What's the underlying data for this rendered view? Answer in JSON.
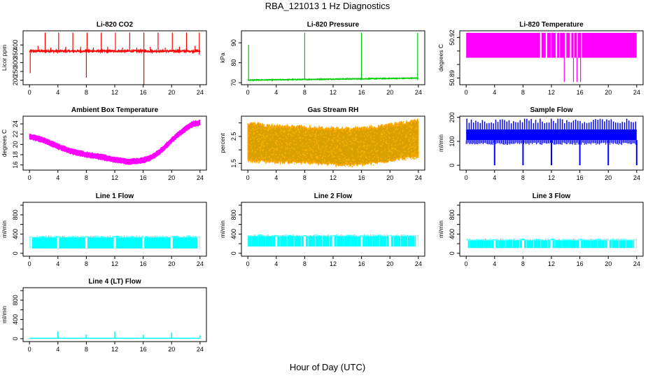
{
  "figure": {
    "title": "RBA_121013  1 Hz Diagnostics",
    "xlabel": "Hour of Day (UTC)"
  },
  "chart_data": [
    {
      "id": "co2",
      "type": "line",
      "title": "Li-820 CO2",
      "ylabel": "Licor ppm",
      "color": "#ff0000",
      "xlim": [
        0,
        24
      ],
      "xticks": [
        0,
        4,
        8,
        12,
        16,
        20,
        24
      ],
      "ylim": [
        175,
        480
      ],
      "yticks": [
        200,
        250,
        300,
        350,
        400
      ],
      "style": "spiky",
      "series": {
        "baseline": 365,
        "band": 10,
        "spikes_up": [
          [
            0.3,
            375
          ],
          [
            1.2,
            395
          ],
          [
            2.2,
            470
          ],
          [
            3.0,
            385
          ],
          [
            4.1,
            470
          ],
          [
            5.1,
            390
          ],
          [
            6.1,
            470
          ],
          [
            7.2,
            390
          ],
          [
            8.1,
            470
          ],
          [
            9.0,
            385
          ],
          [
            10.1,
            470
          ],
          [
            11.0,
            390
          ],
          [
            12.1,
            470
          ],
          [
            13.1,
            385
          ],
          [
            14.1,
            470
          ],
          [
            15.1,
            385
          ],
          [
            16.1,
            470
          ],
          [
            17.0,
            390
          ],
          [
            18.1,
            470
          ],
          [
            19.1,
            385
          ],
          [
            20.1,
            470
          ],
          [
            21.1,
            390
          ],
          [
            22.1,
            470
          ],
          [
            23.3,
            395
          ],
          [
            23.9,
            470
          ]
        ],
        "spikes_down": [
          [
            0.1,
            240
          ],
          [
            8.0,
            215
          ],
          [
            16.1,
            175
          ],
          [
            23.9,
            345
          ]
        ]
      }
    },
    {
      "id": "pressure",
      "type": "line",
      "title": "Li-820 Pressure",
      "ylabel": "kPa",
      "color": "#00cc00",
      "xlim": [
        0,
        24
      ],
      "xticks": [
        0,
        4,
        8,
        12,
        16,
        20,
        24
      ],
      "ylim": [
        69,
        96
      ],
      "yticks": [
        70,
        80,
        90
      ],
      "style": "spiky",
      "series": {
        "baseline": 71.3,
        "end": 72.3,
        "band": 0.4,
        "spikes_up": [
          [
            0.1,
            89
          ],
          [
            8.0,
            95
          ],
          [
            16.0,
            95
          ],
          [
            23.9,
            95
          ]
        ],
        "spikes_down": []
      }
    },
    {
      "id": "licor_temp",
      "type": "band",
      "title": "Li-820 Temperature",
      "ylabel": "degrees C",
      "color": "#ff00ff",
      "xlim": [
        0,
        24
      ],
      "xticks": [
        0,
        4,
        8,
        12,
        16,
        20,
        24
      ],
      "ylim": [
        50.885,
        50.925
      ],
      "yticks": [
        50.89,
        50.92
      ],
      "yticks_minor": [
        50.9,
        50.91
      ],
      "series": {
        "band_low": 50.905,
        "band_high": 50.9235,
        "gaps": [
          [
            10.4,
            10.6
          ],
          [
            11.2,
            11.4
          ],
          [
            11.9,
            12.0
          ],
          [
            12.6,
            12.8
          ],
          [
            13.1,
            13.2
          ],
          [
            13.9,
            14.1
          ],
          [
            14.6,
            14.8
          ],
          [
            15.1,
            15.2
          ],
          [
            15.6,
            15.7
          ],
          [
            16.2,
            16.3
          ]
        ],
        "dips": [
          [
            13.8,
            50.887
          ],
          [
            15.1,
            50.887
          ],
          [
            15.6,
            50.887
          ],
          [
            16.1,
            50.887
          ]
        ]
      }
    },
    {
      "id": "ambient_temp",
      "type": "band",
      "title": "Ambient Box Temperature",
      "ylabel": "degrees C",
      "color": "#ff00ff",
      "xlim": [
        0,
        24
      ],
      "xticks": [
        0,
        4,
        8,
        12,
        16,
        20,
        24
      ],
      "ylim": [
        15,
        25.5
      ],
      "yticks": [
        16,
        18,
        20,
        22,
        24
      ],
      "series": {
        "hours": [
          0,
          2,
          4,
          6,
          8,
          10,
          12,
          14,
          16,
          17,
          18,
          19,
          20,
          21,
          22,
          23,
          24
        ],
        "values": [
          21.6,
          20.8,
          19.6,
          18.6,
          18.0,
          17.6,
          17.0,
          16.6,
          16.9,
          17.4,
          18.2,
          19.4,
          20.8,
          22.0,
          23.1,
          24.0,
          24.2
        ],
        "halfwidth": 0.6
      }
    },
    {
      "id": "gas_rh",
      "type": "band",
      "title": "Gas Stream RH",
      "ylabel": "percent",
      "color": "#ffa500",
      "xlim": [
        0,
        24
      ],
      "xticks": [
        0,
        4,
        8,
        12,
        16,
        20,
        24
      ],
      "ylim": [
        1.25,
        3.25
      ],
      "yticks": [
        1.5,
        2.0,
        2.5,
        3.0
      ],
      "ytick_labels": [
        "1.5",
        "",
        "2.5",
        ""
      ],
      "series": {
        "hours": [
          0,
          4,
          8,
          12,
          16,
          19,
          21,
          24
        ],
        "upper": [
          3.05,
          2.95,
          2.9,
          2.85,
          2.85,
          2.95,
          3.05,
          3.15
        ],
        "lower": [
          1.55,
          1.5,
          1.48,
          1.4,
          1.4,
          1.5,
          1.6,
          1.7
        ],
        "center": [
          2.3,
          2.2,
          2.15,
          2.1,
          2.1,
          2.2,
          2.3,
          2.4
        ]
      }
    },
    {
      "id": "sample_flow",
      "type": "line",
      "title": "Sample Flow",
      "ylabel": "ml/min",
      "color": "#0000ff",
      "xlim": [
        0,
        24
      ],
      "xticks": [
        0,
        4,
        8,
        12,
        16,
        20,
        24
      ],
      "ylim": [
        -20,
        205
      ],
      "yticks": [
        0,
        100,
        200
      ],
      "style": "flowband",
      "series": {
        "band_low": 105,
        "band_high": 150,
        "spike_max": 195,
        "spike_every_h": 0.5,
        "drops": [
          [
            4.0,
            0
          ],
          [
            8.0,
            0
          ],
          [
            12.0,
            0
          ],
          [
            16.0,
            0
          ],
          [
            20.0,
            0
          ],
          [
            24.0,
            0
          ]
        ]
      }
    },
    {
      "id": "line1",
      "type": "band",
      "title": "Line 1 Flow",
      "ylabel": "ml/min",
      "color": "#00ffff",
      "xlim": [
        0,
        24
      ],
      "xticks": [
        0,
        4,
        8,
        12,
        16,
        20,
        24
      ],
      "ylim": [
        -60,
        1060
      ],
      "yticks": [
        0,
        200,
        400,
        600,
        800,
        1000
      ],
      "ytick_labels": [
        "0",
        "",
        "400",
        "",
        "800",
        ""
      ],
      "series": {
        "band_low": 100,
        "band_high": 330,
        "notches": [
          0.2,
          4.0,
          8.0,
          12.0,
          16.0,
          20.0,
          23.8
        ]
      }
    },
    {
      "id": "line2",
      "type": "band",
      "title": "Line 2 Flow",
      "ylabel": "ml/min",
      "color": "#00ffff",
      "xlim": [
        0,
        24
      ],
      "xticks": [
        0,
        4,
        8,
        12,
        16,
        20,
        24
      ],
      "ylim": [
        -60,
        1060
      ],
      "yticks": [
        0,
        200,
        400,
        600,
        800,
        1000
      ],
      "ytick_labels": [
        "0",
        "",
        "400",
        "",
        "800",
        ""
      ],
      "series": {
        "band_low": 140,
        "band_high": 355,
        "notches": [
          4.0,
          8.0,
          12.0,
          16.0,
          20.0,
          23.8
        ],
        "ticks_every_h": 1.0
      }
    },
    {
      "id": "line3",
      "type": "band",
      "title": "Line 3 Flow",
      "ylabel": "ml/min",
      "color": "#00ffff",
      "xlim": [
        0,
        24
      ],
      "xticks": [
        0,
        4,
        8,
        12,
        16,
        20,
        24
      ],
      "ylim": [
        -60,
        1060
      ],
      "yticks": [
        0,
        200,
        400,
        600,
        800,
        1000
      ],
      "ytick_labels": [
        "0",
        "",
        "400",
        "",
        "800",
        ""
      ],
      "series": {
        "band_low": 110,
        "band_high": 270,
        "notches": [
          0.1,
          4.0,
          8.0,
          12.0,
          16.0,
          20.0,
          23.8
        ],
        "ticks_every_h": 1.0
      }
    },
    {
      "id": "line4",
      "type": "line",
      "title": "Line 4 (LT) Flow",
      "ylabel": "ml/min",
      "color": "#00ffff",
      "xlim": [
        0,
        24
      ],
      "xticks": [
        0,
        4,
        8,
        12,
        16,
        20,
        24
      ],
      "ylim": [
        -60,
        1060
      ],
      "yticks": [
        0,
        200,
        400,
        600,
        800,
        1000
      ],
      "ytick_labels": [
        "0",
        "",
        "400",
        "",
        "800",
        ""
      ],
      "style": "flat",
      "series": {
        "baseline": 10,
        "band": 10,
        "spikes_up": [
          [
            4.0,
            150
          ],
          [
            8.0,
            90
          ],
          [
            12.0,
            150
          ],
          [
            16.0,
            80
          ],
          [
            20.0,
            130
          ],
          [
            24.0,
            70
          ]
        ]
      }
    }
  ]
}
